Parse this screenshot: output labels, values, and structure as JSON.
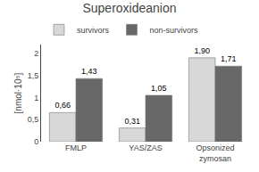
{
  "chart_data": {
    "type": "bar",
    "title": "Superoxideanion",
    "ylabel": "[nmol·10⁵]",
    "categories": [
      "FMLP",
      "YAS/ZAS",
      "Opsonized\nzymosan"
    ],
    "series": [
      {
        "name": "survivors",
        "color": "#d8d8d8",
        "values": [
          0.66,
          0.31,
          1.9
        ],
        "value_labels": [
          "0,66",
          "0,31",
          "1,90"
        ]
      },
      {
        "name": "non-survivors",
        "color": "#686868",
        "values": [
          1.43,
          1.05,
          1.71
        ],
        "value_labels": [
          "1,43",
          "1,05",
          "1,71"
        ]
      }
    ],
    "ylim": [
      0,
      2.2
    ],
    "yticks": [
      0,
      {
        "value": 0.5,
        "label": "0,5"
      },
      1,
      {
        "value": 1.5,
        "label": "1,5"
      },
      2
    ],
    "data_labels": true,
    "grid": false,
    "legend": "upper left"
  }
}
